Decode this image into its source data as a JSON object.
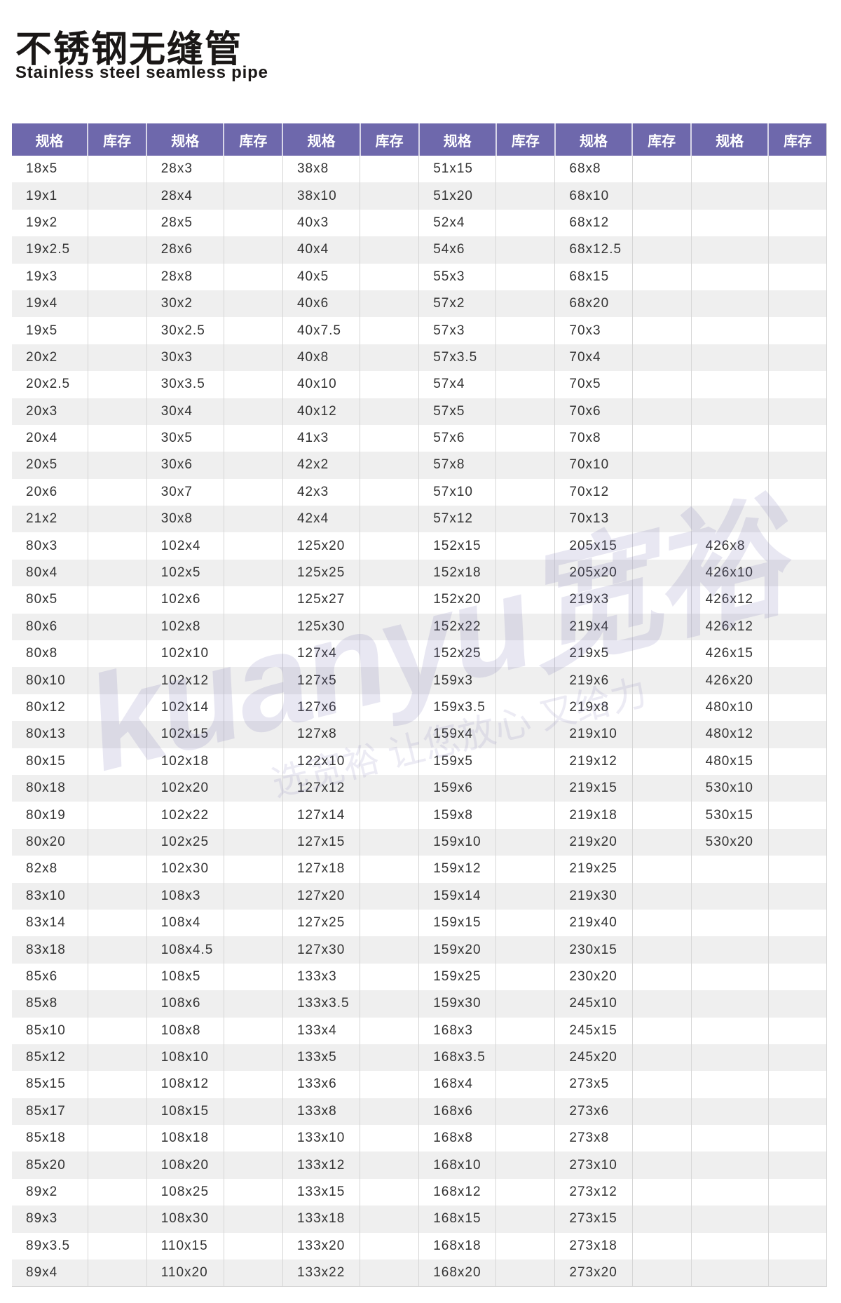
{
  "header": {
    "title": "不锈钢无缝管",
    "subtitle": "Stainless steel seamless pipe"
  },
  "watermark": {
    "logo": "kuanyu宽裕",
    "slogan": "选宽裕 让您放心 又给力"
  },
  "colors": {
    "header_bg": "#6e68ac",
    "alt_row": "#efefef"
  },
  "table": {
    "headers": [
      "规格",
      "库存",
      "规格",
      "库存",
      "规格",
      "库存",
      "规格",
      "库存",
      "规格",
      "库存",
      "规格",
      "库存"
    ],
    "spec_columns": [
      [
        "18x5",
        "19x1",
        "19x2",
        "19x2.5",
        "19x3",
        "19x4",
        "19x5",
        "20x2",
        "20x2.5",
        "20x3",
        "20x4",
        "20x5",
        "20x6",
        "21x2",
        "80x3",
        "80x4",
        "80x5",
        "80x6",
        "80x8",
        "80x10",
        "80x12",
        "80x13",
        "80x15",
        "80x18",
        "80x19",
        "80x20",
        "82x8",
        "83x10",
        "83x14",
        "83x18",
        "85x6",
        "85x8",
        "85x10",
        "85x12",
        "85x15",
        "85x17",
        "85x18",
        "85x20",
        "89x2",
        "89x3",
        "89x3.5",
        "89x4"
      ],
      [
        "28x3",
        "28x4",
        "28x5",
        "28x6",
        "28x8",
        "30x2",
        "30x2.5",
        "30x3",
        "30x3.5",
        "30x4",
        "30x5",
        "30x6",
        "30x7",
        "30x8",
        "102x4",
        "102x5",
        "102x6",
        "102x8",
        "102x10",
        "102x12",
        "102x14",
        "102x15",
        "102x18",
        "102x20",
        "102x22",
        "102x25",
        "102x30",
        "108x3",
        "108x4",
        "108x4.5",
        "108x5",
        "108x6",
        "108x8",
        "108x10",
        "108x12",
        "108x15",
        "108x18",
        "108x20",
        "108x25",
        "108x30",
        "110x15",
        "110x20"
      ],
      [
        "38x8",
        "38x10",
        "40x3",
        "40x4",
        "40x5",
        "40x6",
        "40x7.5",
        "40x8",
        "40x10",
        "40x12",
        "41x3",
        "42x2",
        "42x3",
        "42x4",
        "125x20",
        "125x25",
        "125x27",
        "125x30",
        "127x4",
        "127x5",
        "127x6",
        "127x8",
        "122x10",
        "127x12",
        "127x14",
        "127x15",
        "127x18",
        "127x20",
        "127x25",
        "127x30",
        "133x3",
        "133x3.5",
        "133x4",
        "133x5",
        "133x6",
        "133x8",
        "133x10",
        "133x12",
        "133x15",
        "133x18",
        "133x20",
        "133x22"
      ],
      [
        "51x15",
        "51x20",
        "52x4",
        "54x6",
        "55x3",
        "57x2",
        "57x3",
        "57x3.5",
        "57x4",
        "57x5",
        "57x6",
        "57x8",
        "57x10",
        "57x12",
        "152x15",
        "152x18",
        "152x20",
        "152x22",
        "152x25",
        "159x3",
        "159x3.5",
        "159x4",
        "159x5",
        "159x6",
        "159x8",
        "159x10",
        "159x12",
        "159x14",
        "159x15",
        "159x20",
        "159x25",
        "159x30",
        "168x3",
        "168x3.5",
        "168x4",
        "168x6",
        "168x8",
        "168x10",
        "168x12",
        "168x15",
        "168x18",
        "168x20"
      ],
      [
        "68x8",
        "68x10",
        "68x12",
        "68x12.5",
        "68x15",
        "68x20",
        "70x3",
        "70x4",
        "70x5",
        "70x6",
        "70x8",
        "70x10",
        "70x12",
        "70x13",
        "205x15",
        "205x20",
        "219x3",
        "219x4",
        "219x5",
        "219x6",
        "219x8",
        "219x10",
        "219x12",
        "219x15",
        "219x18",
        "219x20",
        "219x25",
        "219x30",
        "219x40",
        "230x15",
        "230x20",
        "245x10",
        "245x15",
        "245x20",
        "273x5",
        "273x6",
        "273x8",
        "273x10",
        "273x12",
        "273x15",
        "273x18",
        "273x20"
      ],
      [
        "",
        "",
        "",
        "",
        "",
        "",
        "",
        "",
        "",
        "",
        "",
        "",
        "",
        "",
        "426x8",
        "426x10",
        "426x12",
        "426x12",
        "426x15",
        "426x20",
        "480x10",
        "480x12",
        "480x15",
        "530x10",
        "530x15",
        "530x20",
        "",
        "",
        "",
        "",
        "",
        "",
        "",
        "",
        "",
        "",
        "",
        "",
        "",
        "",
        "",
        ""
      ]
    ]
  }
}
